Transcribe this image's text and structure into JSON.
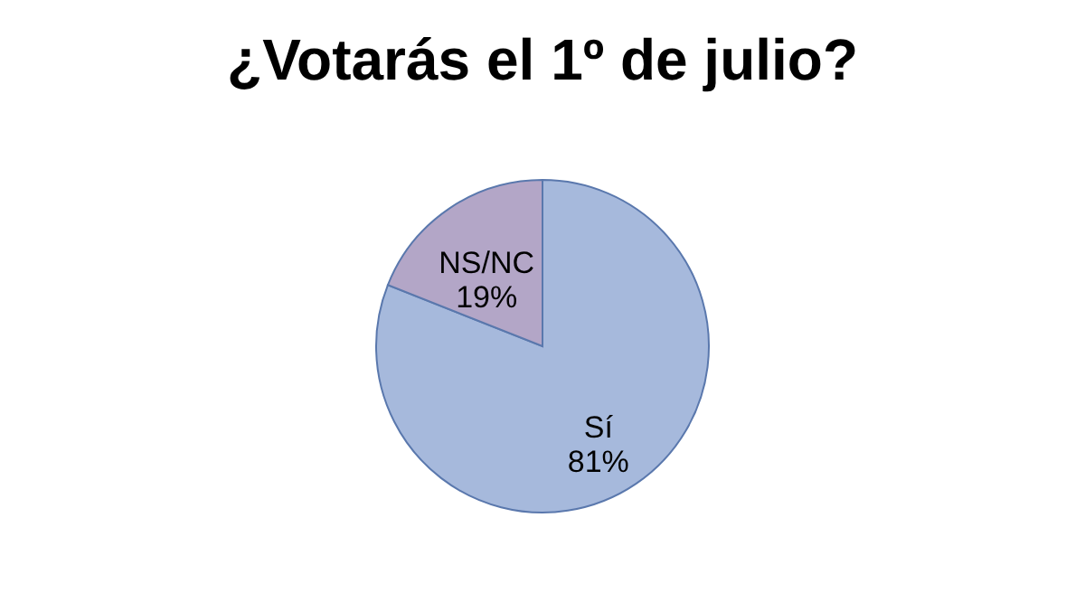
{
  "chart_data": {
    "type": "pie",
    "title": "¿Votarás el 1º de julio?",
    "categories": [
      "Sí",
      "NS/NC"
    ],
    "values": [
      81,
      19
    ],
    "colors": [
      "#a6b9dc",
      "#b3a6c7"
    ],
    "value_labels": [
      "81%",
      "19%"
    ],
    "legend": false
  }
}
